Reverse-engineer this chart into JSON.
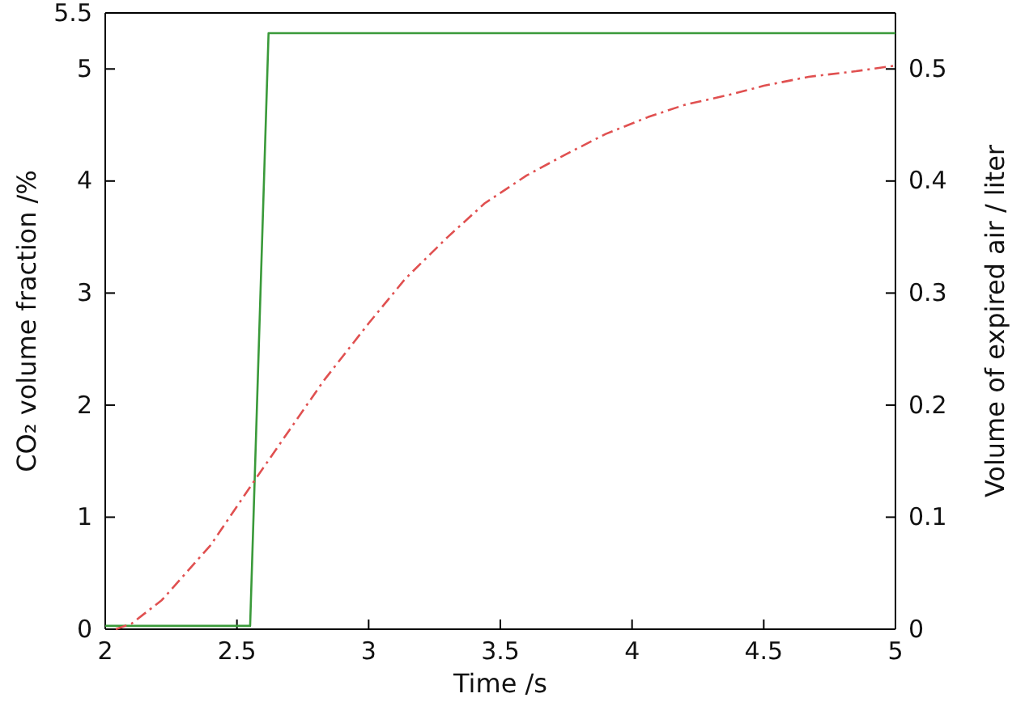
{
  "chart_data": {
    "type": "line",
    "xlabel": "Time /s",
    "ylabel": "CO₂ volume fraction /%",
    "y2label": "Volume of expired air / liter",
    "xlim": [
      2,
      5
    ],
    "xticks": [
      2,
      2.5,
      3,
      3.5,
      4,
      4.5,
      5
    ],
    "ylim": [
      0,
      5.5
    ],
    "yticks": [
      0,
      1,
      2,
      3,
      4,
      5,
      5.5
    ],
    "y2lim": [
      0,
      0.55
    ],
    "y2ticks": [
      0,
      0.1,
      0.2,
      0.3,
      0.4,
      0.5
    ],
    "series": [
      {
        "color": "#3a9a3a",
        "line_style": "solid",
        "x": [
          2,
          2.55,
          2.62,
          5
        ],
        "values": [
          0.03,
          0.03,
          5.32,
          5.32
        ]
      },
      {
        "color": "#e05050",
        "line_style": "dashed",
        "axis": "y2",
        "x": [
          2.04,
          2.1,
          2.215,
          2.4,
          2.553,
          2.7,
          2.83,
          3.0,
          3.14,
          3.3,
          3.44,
          3.6,
          3.75,
          3.9,
          4.06,
          4.2,
          4.37,
          4.5,
          4.67,
          4.85,
          5
        ],
        "values": [
          0,
          0.005,
          0.026,
          0.075,
          0.128,
          0.178,
          0.222,
          0.273,
          0.313,
          0.35,
          0.38,
          0.405,
          0.424,
          0.442,
          0.457,
          0.468,
          0.477,
          0.485,
          0.493,
          0.498,
          0.503
        ]
      }
    ]
  }
}
